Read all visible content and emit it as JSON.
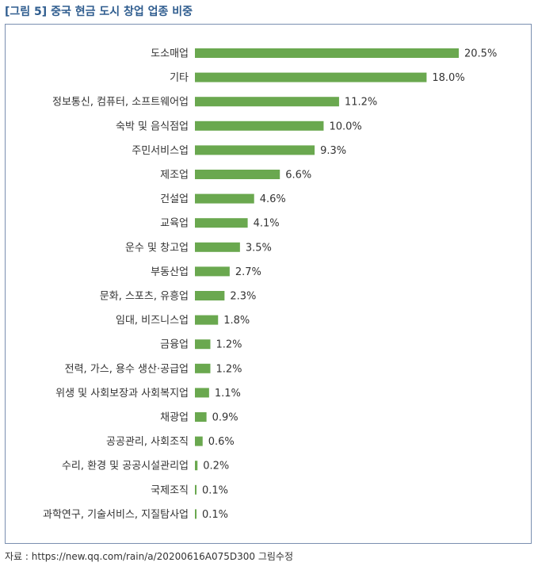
{
  "title": {
    "prefix": "[그림 5]",
    "text": "중국 현금 도시 창업 업종 비중"
  },
  "source": "자료 : https://new.qq.com/rain/a/20200616A075D300 그림수정",
  "colors": {
    "bar": "#6aa84f",
    "title": "#2f5d8f",
    "frame": "#7a8fb0"
  },
  "chart_data": {
    "type": "bar",
    "orientation": "horizontal",
    "categories": [
      "도소매업",
      "기타",
      "정보통신, 컴퓨터, 소프트웨어업",
      "숙박 및 음식점업",
      "주민서비스업",
      "제조업",
      "건설업",
      "교육업",
      "운수 및 창고업",
      "부동산업",
      "문화, 스포츠, 유흥업",
      "임대, 비즈니스업",
      "금융업",
      "전력, 가스, 용수 생산·공급업",
      "위생 및 사회보장과 사회복지업",
      "채광업",
      "공공관리, 사회조직",
      "수리, 환경 및 공공시설관리업",
      "국제조직",
      "과학연구, 기술서비스, 지질탐사업"
    ],
    "values": [
      20.5,
      18.0,
      11.2,
      10.0,
      9.3,
      6.6,
      4.6,
      4.1,
      3.5,
      2.7,
      2.3,
      1.8,
      1.2,
      1.2,
      1.1,
      0.9,
      0.6,
      0.2,
      0.1,
      0.1
    ],
    "value_labels": [
      "20.5%",
      "18.0%",
      "11.2%",
      "10.0%",
      "9.3%",
      "6.6%",
      "4.6%",
      "4.1%",
      "3.5%",
      "2.7%",
      "2.3%",
      "1.8%",
      "1.2%",
      "1.2%",
      "1.1%",
      "0.9%",
      "0.6%",
      "0.2%",
      "0.1%",
      "0.1%"
    ],
    "title": "",
    "xlabel": "",
    "ylabel": "",
    "xlim": [
      0,
      20.5
    ],
    "grid": false,
    "legend": "none"
  }
}
